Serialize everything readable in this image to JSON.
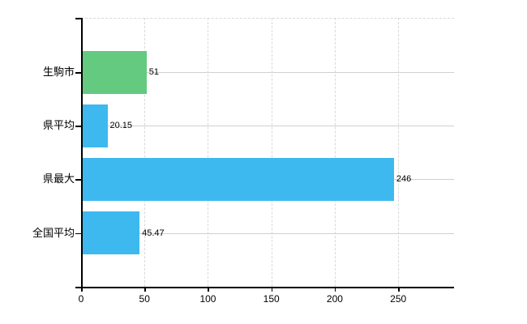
{
  "chart_data": {
    "type": "bar",
    "orientation": "horizontal",
    "title": "",
    "xlabel": "",
    "ylabel": "",
    "categories": [
      "生駒市",
      "県平均",
      "県最大",
      "全国平均"
    ],
    "series": [
      {
        "name": "",
        "values": [
          51,
          20.15,
          246,
          45.47
        ]
      }
    ],
    "value_labels": [
      "51",
      "20.15",
      "246",
      "45.47"
    ],
    "bar_colors": [
      "#63ca7f",
      "#3db9ef",
      "#3db9ef",
      "#3db9ef"
    ],
    "x_tick_labels": [
      "0",
      "50",
      "100",
      "150",
      "200",
      "250"
    ],
    "x_tick_values": [
      0,
      50,
      100,
      150,
      200,
      250
    ],
    "xlim": [
      0,
      294
    ],
    "grid": {
      "vertical_style": "dashed",
      "vertical_color": "#d9d9d9",
      "horizontal_style": "solid",
      "horizontal_color": "#d0d0d0",
      "top_border_style": "dashed"
    },
    "legend_position": "none",
    "background_color": "#ffffff",
    "axis_color": "#000000",
    "text_color": "#000000"
  }
}
